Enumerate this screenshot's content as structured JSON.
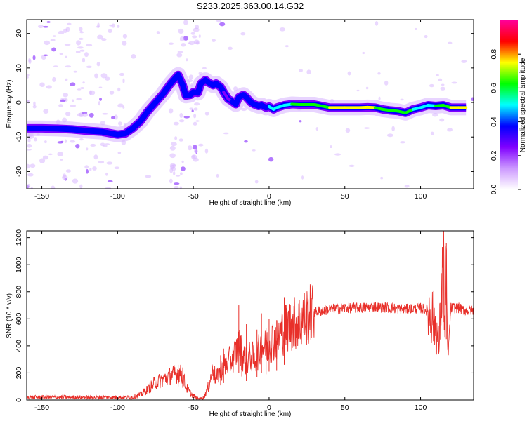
{
  "title": "S233.2025.363.00.14.G32",
  "chart_data": [
    {
      "type": "heatmap",
      "xlabel": "Height of straight line (km)",
      "ylabel": "Frequency (Hz)",
      "xlim": [
        -160,
        135
      ],
      "ylim": [
        -25,
        24
      ],
      "x_ticks": [
        -150,
        -100,
        -50,
        0,
        50,
        100
      ],
      "y_ticks": [
        -20,
        -10,
        0,
        10,
        20
      ],
      "colorbar": {
        "label": "Normalized spectral amplitude",
        "ticks": [
          "0.0",
          "0.2",
          "0.4",
          "0.6",
          "0.8"
        ],
        "range": [
          0,
          1
        ],
        "colors": [
          "#ffffff",
          "#cc99ff",
          "#8000ff",
          "#0000ff",
          "#00ffff",
          "#00ff00",
          "#ffff00",
          "#ff0000",
          "#ff0099"
        ]
      },
      "ridge": {
        "x": [
          -160,
          -150,
          -140,
          -130,
          -120,
          -110,
          -100,
          -95,
          -90,
          -85,
          -80,
          -75,
          -70,
          -65,
          -62,
          -60,
          -57,
          -55,
          -52,
          -50,
          -47,
          -45,
          -42,
          -40,
          -37,
          -35,
          -32,
          -30,
          -27,
          -25,
          -22,
          -20,
          -17,
          -15,
          -12,
          -10,
          -7,
          -5,
          -2,
          0,
          3,
          5,
          10,
          15,
          20,
          30,
          40,
          50,
          60,
          65,
          70,
          75,
          80,
          85,
          90,
          95,
          100,
          105,
          110,
          115,
          120,
          125,
          130
        ],
        "y": [
          -7.5,
          -7.5,
          -7.6,
          -7.8,
          -8.2,
          -8.5,
          -9.3,
          -9.0,
          -7.5,
          -5.5,
          -2.5,
          0.0,
          2.5,
          5.5,
          7.0,
          8.0,
          5.0,
          2.0,
          2.2,
          3.0,
          2.8,
          5.5,
          6.5,
          5.8,
          5.0,
          5.5,
          4.5,
          3.0,
          1.0,
          0.5,
          -0.5,
          1.5,
          2.2,
          1.5,
          0.0,
          -0.5,
          -1.0,
          -0.8,
          -1.5,
          -1.2,
          -2.0,
          -1.5,
          -0.8,
          -0.5,
          -0.6,
          -0.6,
          -1.5,
          -1.5,
          -1.5,
          -1.4,
          -1.5,
          -2.0,
          -2.3,
          -2.5,
          -3.0,
          -2.0,
          -1.5,
          -0.8,
          -1.0,
          -0.8,
          -1.5,
          -1.5,
          -1.5
        ],
        "amplitude": [
          0.35,
          0.35,
          0.35,
          0.35,
          0.4,
          0.4,
          0.45,
          0.4,
          0.35,
          0.35,
          0.35,
          0.4,
          0.4,
          0.4,
          0.35,
          0.35,
          0.35,
          0.35,
          0.35,
          0.35,
          0.4,
          0.45,
          0.4,
          0.35,
          0.35,
          0.35,
          0.35,
          0.3,
          0.3,
          0.3,
          0.35,
          0.4,
          0.4,
          0.35,
          0.35,
          0.35,
          0.35,
          0.35,
          0.4,
          0.4,
          0.6,
          0.5,
          0.5,
          0.55,
          0.6,
          0.6,
          0.7,
          0.8,
          0.8,
          0.75,
          0.65,
          0.6,
          0.7,
          0.6,
          0.75,
          0.55,
          0.45,
          0.5,
          0.6,
          0.55,
          0.65,
          0.75,
          0.7
        ]
      }
    },
    {
      "type": "line",
      "xlabel": "Height of straight line (km)",
      "ylabel": "SNR (10 * v/v)",
      "xlim": [
        -160,
        135
      ],
      "ylim": [
        0,
        1250
      ],
      "x_ticks": [
        -150,
        -100,
        -50,
        0,
        50,
        100
      ],
      "y_ticks": [
        0,
        200,
        400,
        600,
        800,
        1000,
        1200
      ],
      "series": [
        {
          "color": "#e8302a",
          "x": [
            -160,
            -150,
            -140,
            -130,
            -120,
            -110,
            -100,
            -90,
            -85,
            -80,
            -75,
            -70,
            -65,
            -60,
            -57,
            -55,
            -52,
            -50,
            -47,
            -45,
            -43,
            -40,
            -37,
            -35,
            -33,
            -30,
            -27,
            -25,
            -22,
            -20,
            -17,
            -15,
            -12,
            -10,
            -7,
            -5,
            -2,
            0,
            3,
            5,
            8,
            10,
            13,
            15,
            20,
            25,
            30,
            35,
            40,
            50,
            60,
            70,
            80,
            90,
            100,
            105,
            108,
            110,
            112,
            114,
            115,
            116,
            117,
            118,
            120,
            125,
            130,
            135
          ],
          "values": [
            20,
            20,
            20,
            20,
            20,
            20,
            20,
            20,
            40,
            80,
            130,
            150,
            180,
            200,
            180,
            100,
            50,
            30,
            10,
            10,
            20,
            100,
            230,
            150,
            200,
            250,
            280,
            300,
            350,
            400,
            320,
            280,
            330,
            300,
            350,
            400,
            380,
            420,
            450,
            430,
            500,
            520,
            550,
            560,
            580,
            620,
            650,
            660,
            670,
            680,
            680,
            690,
            680,
            670,
            680,
            660,
            620,
            550,
            400,
            800,
            1150,
            500,
            900,
            300,
            680,
            680,
            660,
            660
          ],
          "spikes": [
            [
              -60,
              260
            ],
            [
              -57,
              240
            ],
            [
              -32,
              330
            ],
            [
              -30,
              380
            ],
            [
              -20,
              700
            ],
            [
              -18,
              480
            ],
            [
              -15,
              560
            ],
            [
              -8,
              520
            ],
            [
              -5,
              640
            ],
            [
              -2,
              530
            ],
            [
              0,
              600
            ],
            [
              5,
              590
            ],
            [
              10,
              760
            ],
            [
              115,
              1240
            ],
            [
              117,
              1160
            ]
          ]
        }
      ]
    }
  ]
}
